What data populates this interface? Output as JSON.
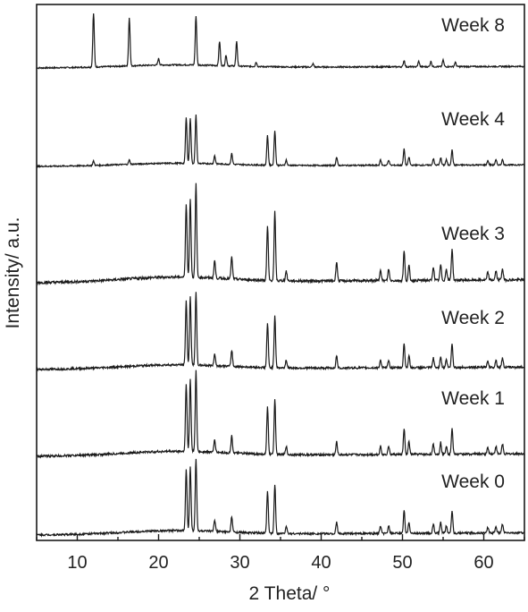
{
  "chart_data": {
    "type": "line",
    "xlabel": "2 Theta/ °",
    "ylabel": "Intensity/ a.u.",
    "xlim": [
      5,
      65
    ],
    "x_ticks": [
      10,
      20,
      30,
      40,
      50,
      60
    ],
    "y_ticks": false,
    "grid": false,
    "legend": "none",
    "line_color": "#1a1a1a",
    "series": [
      {
        "name": "Week 8",
        "peaks": [
          [
            12.0,
            1.0
          ],
          [
            16.4,
            0.9
          ],
          [
            20.0,
            0.12
          ],
          [
            24.6,
            0.92
          ],
          [
            27.5,
            0.45
          ],
          [
            28.3,
            0.2
          ],
          [
            29.6,
            0.45
          ],
          [
            32.0,
            0.08
          ],
          [
            39.0,
            0.06
          ],
          [
            50.2,
            0.12
          ],
          [
            52.0,
            0.1
          ],
          [
            53.5,
            0.1
          ],
          [
            55.0,
            0.12
          ],
          [
            56.5,
            0.08
          ]
        ]
      },
      {
        "name": "Week 4",
        "peaks": [
          [
            12.0,
            0.08
          ],
          [
            16.4,
            0.08
          ],
          [
            23.4,
            0.85
          ],
          [
            23.9,
            0.85
          ],
          [
            24.6,
            0.9
          ],
          [
            26.9,
            0.15
          ],
          [
            29.0,
            0.2
          ],
          [
            33.4,
            0.55
          ],
          [
            34.3,
            0.65
          ],
          [
            35.7,
            0.1
          ],
          [
            41.9,
            0.15
          ],
          [
            47.3,
            0.1
          ],
          [
            48.3,
            0.1
          ],
          [
            50.2,
            0.3
          ],
          [
            50.8,
            0.15
          ],
          [
            53.8,
            0.12
          ],
          [
            54.7,
            0.14
          ],
          [
            55.4,
            0.1
          ],
          [
            56.1,
            0.28
          ],
          [
            60.5,
            0.08
          ],
          [
            61.5,
            0.09
          ],
          [
            62.3,
            0.1
          ]
        ]
      },
      {
        "name": "Week 3",
        "peaks": [
          [
            23.4,
            0.75
          ],
          [
            23.9,
            0.8
          ],
          [
            24.6,
            0.95
          ],
          [
            26.9,
            0.18
          ],
          [
            29.0,
            0.22
          ],
          [
            33.4,
            0.55
          ],
          [
            34.3,
            0.7
          ],
          [
            35.7,
            0.1
          ],
          [
            41.9,
            0.2
          ],
          [
            47.3,
            0.12
          ],
          [
            48.3,
            0.12
          ],
          [
            50.2,
            0.3
          ],
          [
            50.8,
            0.15
          ],
          [
            53.8,
            0.14
          ],
          [
            54.7,
            0.16
          ],
          [
            55.4,
            0.12
          ],
          [
            56.1,
            0.32
          ],
          [
            60.5,
            0.08
          ],
          [
            61.5,
            0.09
          ],
          [
            62.3,
            0.12
          ]
        ]
      },
      {
        "name": "Week 2",
        "peaks": [
          [
            23.4,
            0.8
          ],
          [
            23.9,
            0.85
          ],
          [
            24.6,
            0.9
          ],
          [
            26.9,
            0.15
          ],
          [
            29.0,
            0.2
          ],
          [
            33.4,
            0.55
          ],
          [
            34.3,
            0.65
          ],
          [
            35.7,
            0.1
          ],
          [
            41.9,
            0.15
          ],
          [
            47.3,
            0.1
          ],
          [
            48.3,
            0.1
          ],
          [
            50.2,
            0.3
          ],
          [
            50.8,
            0.15
          ],
          [
            53.8,
            0.12
          ],
          [
            54.7,
            0.14
          ],
          [
            55.4,
            0.1
          ],
          [
            56.1,
            0.3
          ],
          [
            60.5,
            0.08
          ],
          [
            61.5,
            0.09
          ],
          [
            62.3,
            0.12
          ]
        ]
      },
      {
        "name": "Week 1",
        "peaks": [
          [
            23.4,
            0.8
          ],
          [
            23.9,
            0.85
          ],
          [
            24.6,
            0.95
          ],
          [
            26.9,
            0.15
          ],
          [
            29.0,
            0.2
          ],
          [
            33.4,
            0.55
          ],
          [
            34.3,
            0.65
          ],
          [
            35.7,
            0.1
          ],
          [
            41.9,
            0.15
          ],
          [
            47.3,
            0.1
          ],
          [
            48.3,
            0.1
          ],
          [
            50.2,
            0.3
          ],
          [
            50.8,
            0.15
          ],
          [
            53.8,
            0.12
          ],
          [
            54.7,
            0.14
          ],
          [
            55.4,
            0.1
          ],
          [
            56.1,
            0.3
          ],
          [
            60.5,
            0.08
          ],
          [
            61.5,
            0.09
          ],
          [
            62.3,
            0.12
          ]
        ]
      },
      {
        "name": "Week 0",
        "peaks": [
          [
            23.4,
            0.8
          ],
          [
            23.9,
            0.85
          ],
          [
            24.6,
            0.95
          ],
          [
            26.9,
            0.15
          ],
          [
            29.0,
            0.2
          ],
          [
            33.4,
            0.55
          ],
          [
            34.3,
            0.65
          ],
          [
            35.7,
            0.1
          ],
          [
            41.9,
            0.15
          ],
          [
            47.3,
            0.1
          ],
          [
            48.3,
            0.1
          ],
          [
            50.2,
            0.3
          ],
          [
            50.8,
            0.15
          ],
          [
            53.8,
            0.12
          ],
          [
            54.7,
            0.14
          ],
          [
            55.4,
            0.1
          ],
          [
            56.1,
            0.3
          ],
          [
            60.5,
            0.08
          ],
          [
            61.5,
            0.09
          ],
          [
            62.3,
            0.12
          ]
        ]
      }
    ]
  }
}
